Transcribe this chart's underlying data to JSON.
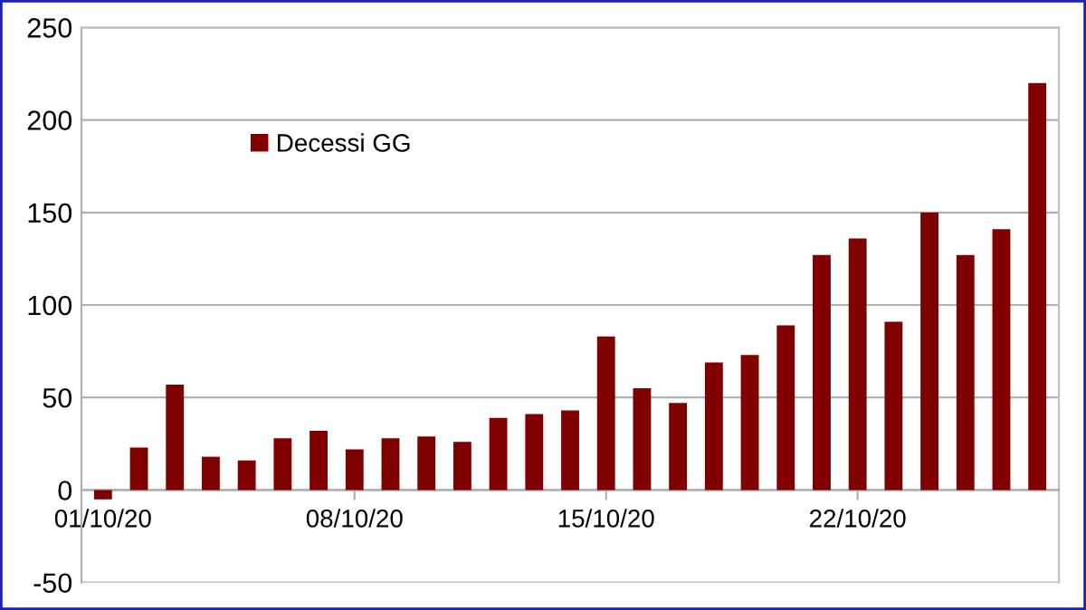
{
  "chart_data": {
    "type": "bar",
    "categories": [
      "01/10/20",
      null,
      null,
      null,
      null,
      null,
      null,
      "08/10/20",
      null,
      null,
      null,
      null,
      null,
      null,
      "15/10/20",
      null,
      null,
      null,
      null,
      null,
      null,
      "22/10/20",
      null,
      null,
      null,
      null,
      null
    ],
    "series": [
      {
        "name": "Decessi GG",
        "color": "#800000",
        "values": [
          -5,
          23,
          57,
          18,
          16,
          28,
          32,
          22,
          28,
          29,
          26,
          39,
          41,
          43,
          83,
          55,
          47,
          69,
          73,
          89,
          127,
          136,
          91,
          150,
          127,
          141,
          220
        ]
      }
    ],
    "ylim": [
      -50,
      250
    ],
    "yticks": [
      -50,
      0,
      50,
      100,
      150,
      200,
      250
    ],
    "grid": "y",
    "legend": "top left"
  }
}
